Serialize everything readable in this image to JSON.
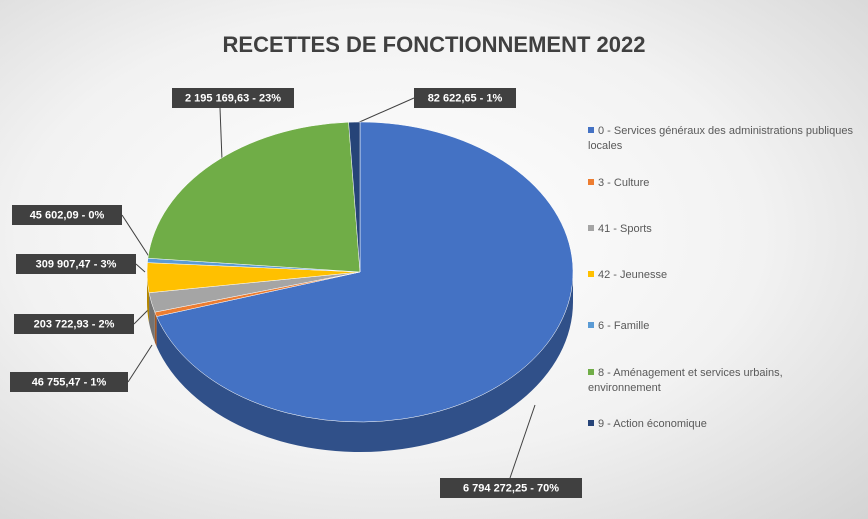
{
  "chart_data": {
    "type": "pie",
    "title": "RECETTES DE FONCTIONNEMENT 2022",
    "categories": [
      "0 - Services généraux des administrations publiques locales",
      "3 - Culture",
      "41 - Sports",
      "42 - Jeunesse",
      "6 - Famille",
      "8 - Aménagement et services urbains, environnement",
      "9 - Action économique"
    ],
    "values": [
      6794272.25,
      46755.47,
      203722.93,
      309907.47,
      45602.09,
      2195169.63,
      82622.65
    ],
    "value_labels": [
      "6 794 272,25 - 70%",
      "46 755,47 - 1%",
      "203 722,93 - 2%",
      "309 907,47 - 3%",
      "45 602,09 - 0%",
      "2 195 169,63 - 23%",
      "82 622,65 - 1%"
    ],
    "colors": [
      "#4472c4",
      "#ed7d31",
      "#a5a5a5",
      "#ffc000",
      "#5b9bd5",
      "#70ad47",
      "#264478"
    ],
    "legend": "right"
  }
}
